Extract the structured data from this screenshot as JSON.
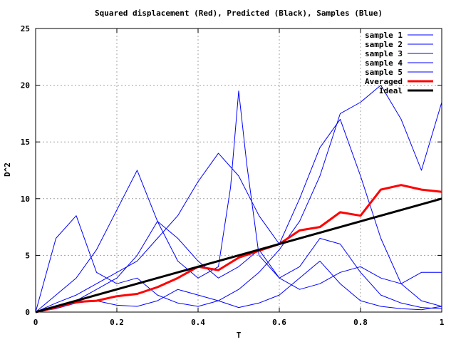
{
  "chart_data": {
    "type": "line",
    "title": "Squared displacement (Red), Predicted (Black), Samples (Blue)",
    "xlabel": "T",
    "ylabel": "D^2",
    "xlim": [
      0,
      1
    ],
    "ylim": [
      0,
      25
    ],
    "xticks": [
      "0",
      "0.2",
      "0.4",
      "0.6",
      "0.8",
      "1"
    ],
    "yticks": [
      "0",
      "5",
      "10",
      "15",
      "20",
      "25"
    ],
    "grid": true,
    "legend_position": "top-right",
    "series": [
      {
        "name": "sample 1",
        "color": "#0000ff",
        "width": 1,
        "x": [
          0,
          0.05,
          0.1,
          0.15,
          0.2,
          0.25,
          0.3,
          0.35,
          0.4,
          0.45,
          0.5,
          0.55,
          0.6,
          0.65,
          0.7,
          0.75,
          0.8,
          0.85,
          0.9,
          0.95,
          1.0
        ],
        "y": [
          0,
          6.5,
          8.5,
          3.5,
          2.5,
          3.0,
          1.5,
          0.8,
          0.5,
          1.0,
          2.0,
          3.5,
          5.5,
          8.0,
          12.0,
          17.5,
          18.5,
          20.0,
          17.0,
          12.5,
          18.5
        ]
      },
      {
        "name": "sample 2",
        "color": "#0000ff",
        "width": 1,
        "x": [
          0,
          0.05,
          0.1,
          0.15,
          0.2,
          0.25,
          0.3,
          0.35,
          0.4,
          0.45,
          0.48,
          0.5,
          0.52,
          0.55,
          0.6,
          0.65,
          0.7,
          0.75,
          0.8,
          0.85,
          0.9,
          0.95,
          1.0
        ],
        "y": [
          0,
          1.5,
          3.0,
          5.5,
          9.0,
          12.5,
          8.0,
          4.5,
          3.0,
          4.0,
          11.0,
          19.5,
          13.0,
          5.0,
          3.0,
          4.0,
          6.5,
          6.0,
          3.5,
          1.5,
          0.8,
          0.4,
          0.3
        ]
      },
      {
        "name": "sample 3",
        "color": "#0000ff",
        "width": 1,
        "x": [
          0,
          0.05,
          0.1,
          0.15,
          0.2,
          0.25,
          0.3,
          0.35,
          0.4,
          0.45,
          0.5,
          0.55,
          0.6,
          0.65,
          0.7,
          0.75,
          0.8,
          0.85,
          0.9,
          0.95,
          1.0
        ],
        "y": [
          0,
          0.8,
          1.5,
          2.5,
          3.5,
          4.5,
          6.5,
          8.5,
          11.5,
          14.0,
          12.0,
          8.5,
          6.0,
          10.0,
          14.5,
          17.0,
          12.0,
          6.5,
          2.5,
          1.0,
          0.5
        ]
      },
      {
        "name": "sample 4",
        "color": "#0000ff",
        "width": 1,
        "x": [
          0,
          0.05,
          0.1,
          0.15,
          0.2,
          0.25,
          0.3,
          0.35,
          0.4,
          0.45,
          0.5,
          0.55,
          0.6,
          0.65,
          0.7,
          0.75,
          0.8,
          0.85,
          0.9,
          0.95,
          1.0
        ],
        "y": [
          0,
          0.5,
          1.0,
          2.0,
          3.0,
          5.0,
          8.0,
          6.5,
          4.5,
          3.0,
          4.0,
          5.5,
          3.0,
          2.0,
          2.5,
          3.5,
          4.0,
          3.0,
          2.5,
          3.5,
          3.5
        ]
      },
      {
        "name": "sample 5",
        "color": "#0000ff",
        "width": 1,
        "x": [
          0,
          0.05,
          0.1,
          0.15,
          0.2,
          0.25,
          0.3,
          0.35,
          0.4,
          0.45,
          0.5,
          0.55,
          0.6,
          0.65,
          0.7,
          0.75,
          0.8,
          0.85,
          0.9,
          0.95,
          1.0
        ],
        "y": [
          0,
          0.3,
          0.8,
          1.0,
          0.6,
          0.5,
          1.0,
          2.0,
          1.5,
          1.0,
          0.4,
          0.8,
          1.5,
          3.0,
          4.5,
          2.5,
          1.0,
          0.5,
          0.3,
          0.2,
          0.5
        ]
      },
      {
        "name": "Averaged",
        "color": "#ff0000",
        "width": 3,
        "x": [
          0,
          0.05,
          0.1,
          0.15,
          0.2,
          0.25,
          0.3,
          0.35,
          0.4,
          0.45,
          0.5,
          0.55,
          0.6,
          0.65,
          0.7,
          0.75,
          0.8,
          0.85,
          0.9,
          0.95,
          1.0
        ],
        "y": [
          0,
          0.4,
          0.9,
          1.0,
          1.4,
          1.6,
          2.2,
          3.0,
          4.0,
          3.7,
          4.8,
          5.4,
          6.0,
          7.2,
          7.5,
          8.8,
          8.5,
          10.8,
          11.2,
          10.8,
          10.6
        ]
      },
      {
        "name": "Ideal",
        "color": "#000000",
        "width": 3,
        "x": [
          0,
          1
        ],
        "y": [
          0,
          10
        ]
      }
    ]
  }
}
